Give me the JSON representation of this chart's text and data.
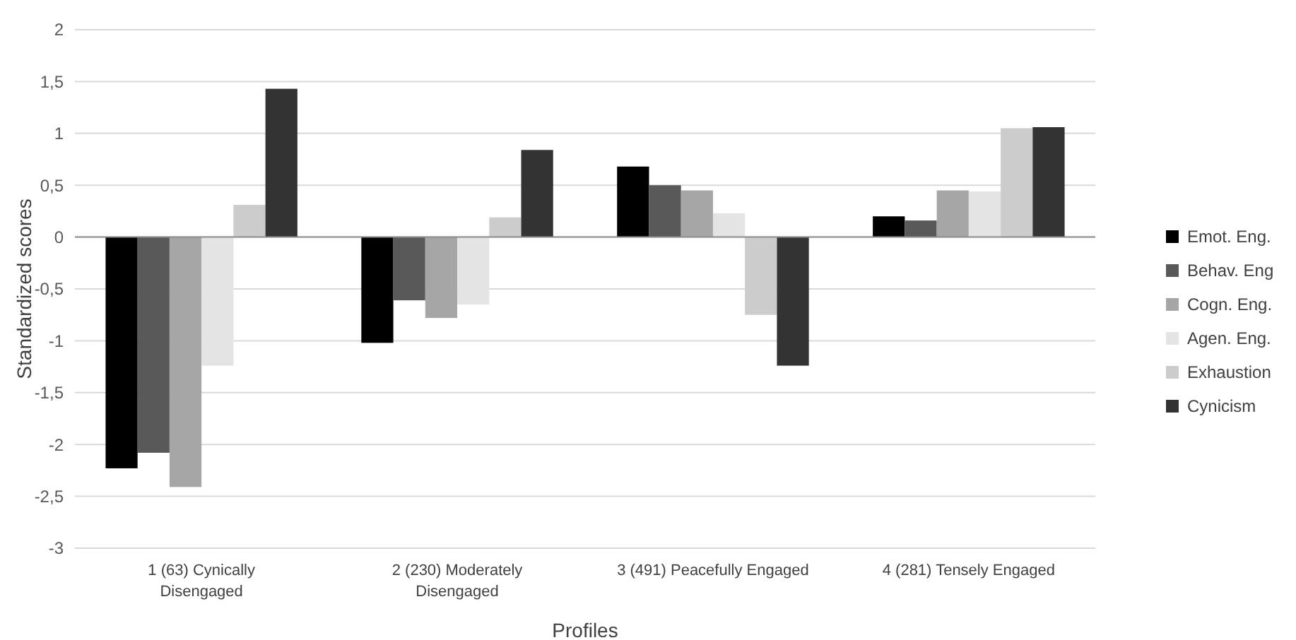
{
  "chart_data": {
    "type": "bar",
    "xlabel": "Profiles",
    "ylabel": "Standardized scores",
    "categories": [
      "1 (63) Cynically Disengaged",
      "2 (230) Moderately Disengaged",
      "3 (491) Peacefully Engaged",
      "4 (281) Tensely Engaged"
    ],
    "series": [
      {
        "name": "Emot. Eng.",
        "color": "#000000",
        "values": [
          -2.23,
          -1.02,
          0.68,
          0.2
        ]
      },
      {
        "name": "Behav. Eng",
        "color": "#595959",
        "values": [
          -2.08,
          -0.61,
          0.5,
          0.16
        ]
      },
      {
        "name": "Cogn. Eng.",
        "color": "#a6a6a6",
        "values": [
          -2.41,
          -0.78,
          0.45,
          0.45
        ]
      },
      {
        "name": "Agen. Eng.",
        "color": "#e4e4e4",
        "values": [
          -1.24,
          -0.65,
          0.23,
          0.44
        ]
      },
      {
        "name": "Exhaustion",
        "color": "#cccccc",
        "values": [
          0.31,
          0.19,
          -0.75,
          1.05
        ]
      },
      {
        "name": "Cynicism",
        "color": "#333333",
        "values": [
          1.43,
          0.84,
          -1.24,
          1.06
        ]
      }
    ],
    "ylim": [
      -3,
      2
    ],
    "yticks": [
      {
        "value": -3,
        "label": "-3"
      },
      {
        "value": -2.5,
        "label": "-2,5"
      },
      {
        "value": -2,
        "label": "-2"
      },
      {
        "value": -1.5,
        "label": "-1,5"
      },
      {
        "value": -1,
        "label": "-1"
      },
      {
        "value": -0.5,
        "label": "-0,5"
      },
      0,
      {
        "value": 0.5,
        "label": "0,5"
      },
      1,
      {
        "value": 1.5,
        "label": "1,5"
      },
      2
    ],
    "grid": "y",
    "legend": "right"
  }
}
